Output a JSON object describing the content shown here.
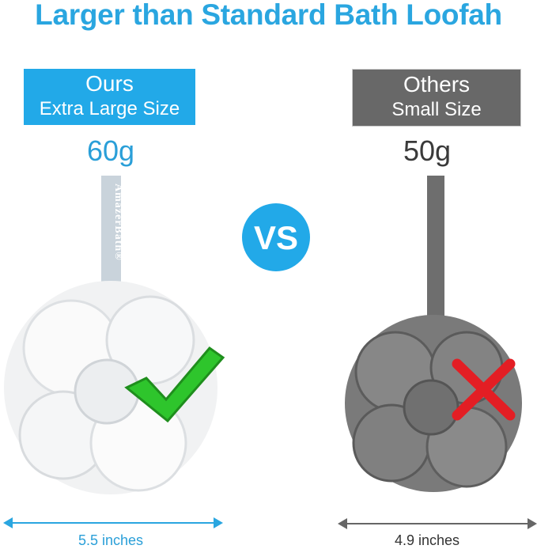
{
  "title": "Larger than Standard Bath Loofah",
  "ours": {
    "label": "Ours",
    "size": "Extra Large Size",
    "weight": "60g",
    "diameter": "5.5 inches",
    "brand_strap": "AmazerBath®",
    "mark_icon": "check-icon",
    "color": "#22a9e8"
  },
  "others": {
    "label": "Others",
    "size": "Small Size",
    "weight": "50g",
    "diameter": "4.9 inches",
    "mark_icon": "cross-icon",
    "color": "#686868"
  },
  "vs": "VS"
}
